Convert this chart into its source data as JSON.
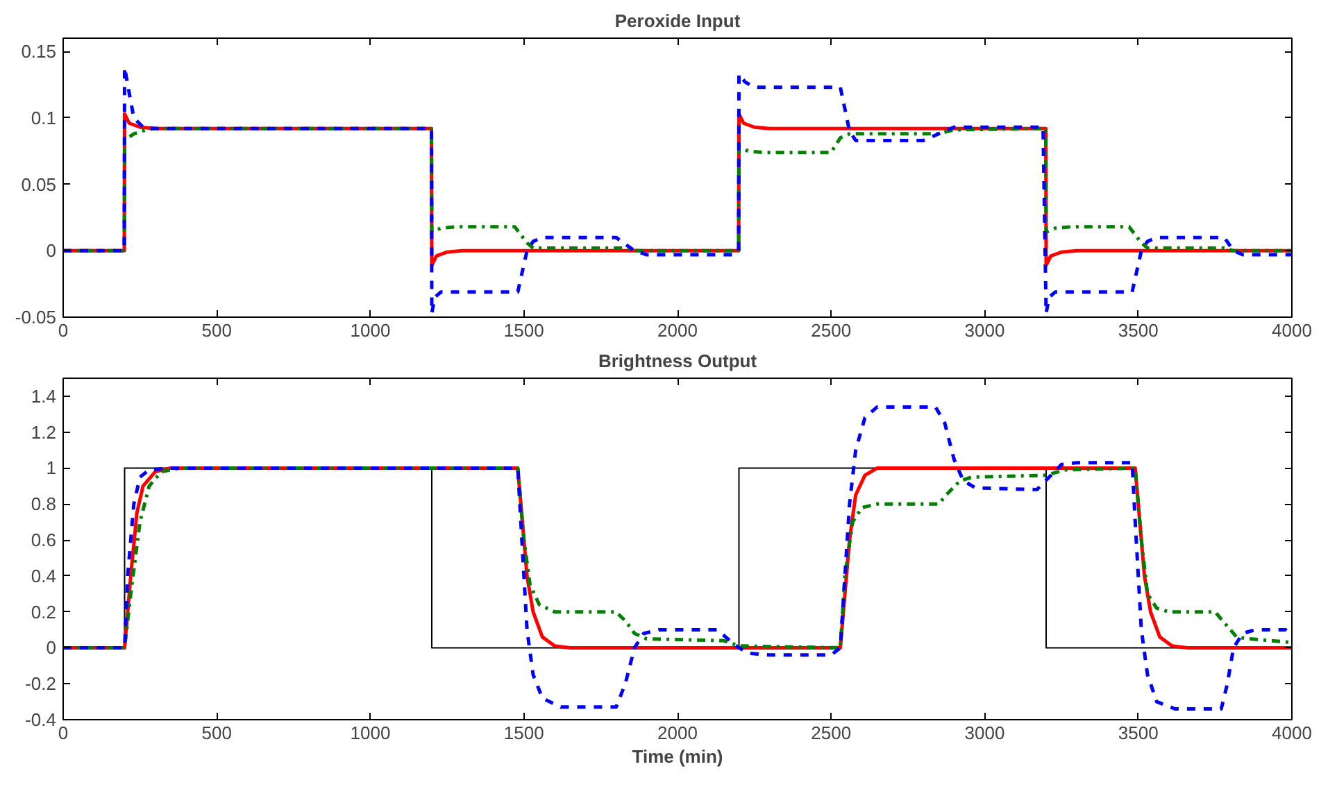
{
  "chart_data": [
    {
      "type": "line",
      "title": "Peroxide Input",
      "xlim": [
        0,
        4000
      ],
      "ylim": [
        -0.05,
        0.16
      ],
      "xticks": [
        0,
        500,
        1000,
        1500,
        2000,
        2500,
        3000,
        3500,
        4000
      ],
      "yticks": [
        -0.05,
        0,
        0.05,
        0.1,
        0.15
      ],
      "grid": false,
      "series": [
        {
          "color": "#ff0000",
          "line_style": "solid",
          "x": [
            0,
            199,
            200,
            215,
            250,
            300,
            1199,
            1200,
            1215,
            1250,
            1300,
            2199,
            2200,
            2215,
            2250,
            2300,
            3199,
            3200,
            3215,
            3250,
            3300,
            4000
          ],
          "values": [
            0,
            0,
            0.103,
            0.096,
            0.093,
            0.092,
            0.092,
            -0.011,
            -0.004,
            -0.001,
            0,
            0,
            0.103,
            0.096,
            0.093,
            0.092,
            0.092,
            -0.011,
            -0.004,
            -0.001,
            0,
            0
          ]
        },
        {
          "color": "#008000",
          "line_style": "dashdot",
          "x": [
            0,
            199,
            200,
            230,
            270,
            300,
            1199,
            1200,
            1230,
            1280,
            1470,
            1510,
            1530,
            1830,
            1870,
            2199,
            2200,
            2230,
            2280,
            2500,
            2530,
            2560,
            2850,
            2900,
            3199,
            3200,
            3230,
            3280,
            3470,
            3510,
            3530,
            3780,
            3810,
            4000
          ],
          "values": [
            0,
            0,
            0.083,
            0.088,
            0.091,
            0.092,
            0.092,
            0.014,
            0.017,
            0.018,
            0.018,
            0.006,
            0.002,
            0.002,
            0,
            0,
            0.078,
            0.075,
            0.074,
            0.074,
            0.085,
            0.088,
            0.088,
            0.091,
            0.092,
            0.014,
            0.017,
            0.018,
            0.018,
            0.006,
            0.002,
            0.002,
            0,
            0
          ]
        },
        {
          "color": "#0000ff",
          "line_style": "dashed",
          "x": [
            0,
            199,
            200,
            210,
            230,
            260,
            300,
            1199,
            1200,
            1210,
            1230,
            1480,
            1510,
            1530,
            1560,
            1800,
            1860,
            1900,
            2180,
            2199,
            2200,
            2220,
            2250,
            2530,
            2560,
            2580,
            2800,
            2870,
            2900,
            3190,
            3200,
            3210,
            3230,
            3480,
            3510,
            3530,
            3560,
            3780,
            3810,
            3840,
            4000
          ],
          "values": [
            0,
            0,
            0.138,
            0.125,
            0.1,
            0.093,
            0.092,
            0.092,
            -0.047,
            -0.035,
            -0.031,
            -0.031,
            0,
            0.007,
            0.01,
            0.01,
            0,
            -0.003,
            -0.003,
            0,
            0.133,
            0.127,
            0.123,
            0.123,
            0.09,
            0.083,
            0.083,
            0.09,
            0.093,
            0.093,
            -0.047,
            -0.035,
            -0.031,
            -0.031,
            0,
            0.007,
            0.01,
            0.01,
            0,
            -0.003,
            -0.003
          ]
        }
      ]
    },
    {
      "type": "line",
      "title": "Brightness Output",
      "xlabel": "Time (min)",
      "xlim": [
        0,
        4000
      ],
      "ylim": [
        -0.4,
        1.5
      ],
      "xticks": [
        0,
        500,
        1000,
        1500,
        2000,
        2500,
        3000,
        3500,
        4000
      ],
      "yticks": [
        -0.4,
        -0.2,
        0,
        0.2,
        0.4,
        0.6,
        0.8,
        1,
        1.2,
        1.4
      ],
      "grid": false,
      "series": [
        {
          "color": "#000000",
          "line_style": "solid",
          "x": [
            0,
            200,
            200,
            1200,
            1200,
            2200,
            2200,
            3200,
            3200,
            4000
          ],
          "values": [
            0,
            0,
            1,
            1,
            0,
            0,
            1,
            1,
            0,
            0
          ]
        },
        {
          "color": "#ff0000",
          "line_style": "solid",
          "x": [
            0,
            200,
            220,
            240,
            260,
            300,
            350,
            1480,
            1490,
            1510,
            1530,
            1560,
            1600,
            1650,
            2530,
            2540,
            2560,
            2580,
            2610,
            2650,
            3490,
            3500,
            3520,
            3540,
            3570,
            3610,
            3660,
            4000
          ],
          "values": [
            0,
            0,
            0.4,
            0.75,
            0.9,
            0.98,
            1,
            1,
            0.8,
            0.4,
            0.2,
            0.06,
            0.01,
            0,
            0,
            0.2,
            0.6,
            0.85,
            0.96,
            1,
            1,
            0.8,
            0.4,
            0.2,
            0.06,
            0.01,
            0,
            0
          ]
        },
        {
          "color": "#008000",
          "line_style": "dashdot",
          "x": [
            0,
            200,
            220,
            250,
            280,
            320,
            380,
            1480,
            1500,
            1520,
            1550,
            1600,
            1800,
            1830,
            1860,
            1900,
            2150,
            2200,
            2530,
            2545,
            2570,
            2600,
            2650,
            2850,
            2880,
            2920,
            2960,
            3200,
            3260,
            3490,
            3510,
            3530,
            3560,
            3600,
            3750,
            3790,
            3820,
            3860,
            4000
          ],
          "values": [
            0,
            0,
            0.3,
            0.7,
            0.9,
            0.98,
            1,
            1,
            0.6,
            0.35,
            0.24,
            0.2,
            0.2,
            0.15,
            0.08,
            0.05,
            0.04,
            0.01,
            0,
            0.4,
            0.7,
            0.78,
            0.8,
            0.8,
            0.86,
            0.93,
            0.95,
            0.96,
            0.99,
            1,
            0.6,
            0.3,
            0.22,
            0.2,
            0.2,
            0.12,
            0.06,
            0.05,
            0.03
          ]
        },
        {
          "color": "#0000ff",
          "line_style": "dashed",
          "x": [
            0,
            200,
            210,
            230,
            250,
            280,
            350,
            1480,
            1490,
            1510,
            1530,
            1560,
            1620,
            1800,
            1830,
            1860,
            1890,
            1940,
            2130,
            2170,
            2200,
            2230,
            2300,
            2500,
            2530,
            2545,
            2560,
            2580,
            2610,
            2650,
            2840,
            2870,
            2900,
            2930,
            2970,
            3170,
            3210,
            3250,
            3300,
            3480,
            3490,
            3510,
            3530,
            3560,
            3620,
            3770,
            3790,
            3810,
            3840,
            3880,
            3980,
            4000
          ],
          "values": [
            0,
            0,
            0.4,
            0.8,
            0.95,
            0.99,
            1,
            1,
            0.7,
            0.1,
            -0.15,
            -0.28,
            -0.33,
            -0.33,
            -0.2,
            0,
            0.08,
            0.1,
            0.1,
            0.04,
            0,
            -0.03,
            -0.04,
            -0.04,
            0,
            0.4,
            0.8,
            1.1,
            1.28,
            1.34,
            1.34,
            1.25,
            1.05,
            0.93,
            0.89,
            0.88,
            0.95,
            1.02,
            1.03,
            1.03,
            0.7,
            0.1,
            -0.15,
            -0.3,
            -0.34,
            -0.34,
            -0.2,
            0,
            0.08,
            0.1,
            0.1,
            0.07
          ]
        }
      ]
    }
  ]
}
